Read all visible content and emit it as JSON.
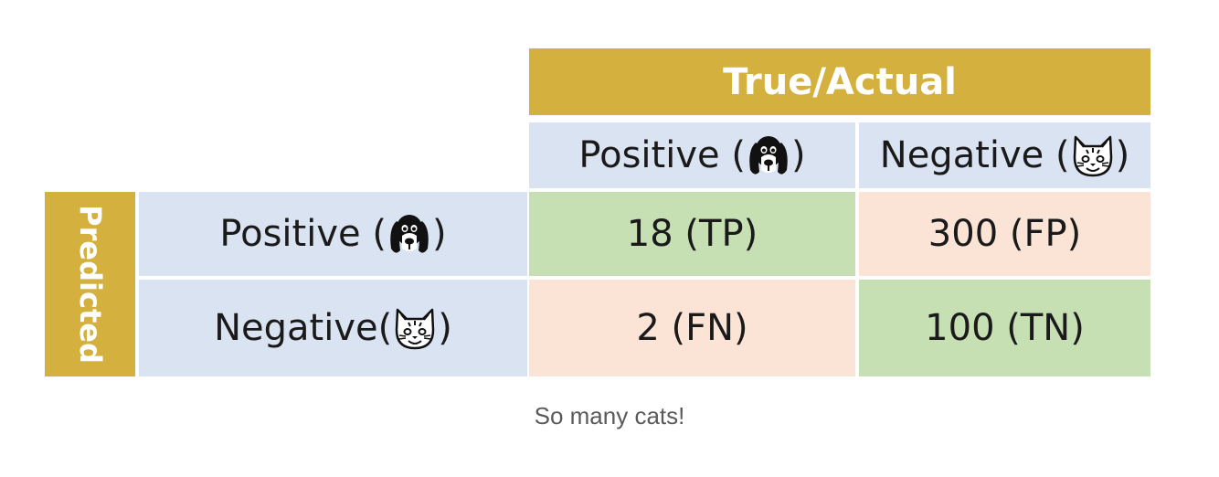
{
  "table": {
    "column_header": "True/Actual",
    "row_header": "Predicted",
    "columns": [
      {
        "label": "Positive",
        "icon": "dog-icon"
      },
      {
        "label": "Negative",
        "icon": "cat-icon"
      }
    ],
    "rows": [
      {
        "label": "Positive",
        "icon": "dog-icon"
      },
      {
        "label": "Negative",
        "icon": "cat-icon"
      }
    ],
    "cells": {
      "tp": "18 (TP)",
      "fp": "300 (FP)",
      "fn": "2 (FN)",
      "tn": "100 (TN)"
    },
    "colors": {
      "header": "#d4b03e",
      "label_bg": "#dae3f2",
      "correct": "#c6e0b4",
      "incorrect": "#fbe3d5"
    }
  },
  "caption": "So many cats!"
}
